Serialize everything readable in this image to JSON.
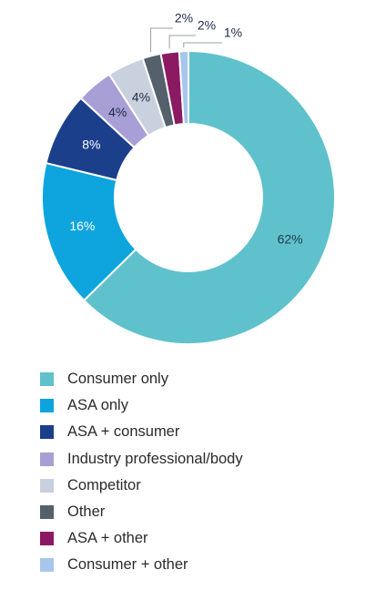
{
  "chart_data": {
    "type": "pie",
    "donut": true,
    "start_angle_deg": 0,
    "title": "",
    "legend_position": "bottom-left",
    "slices": [
      {
        "name": "Consumer only",
        "value": 62,
        "label": "62%",
        "color": "#5fc1cc",
        "label_color": "#1f3a4a"
      },
      {
        "name": "ASA only",
        "value": 16,
        "label": "16%",
        "color": "#0ea5de",
        "label_color": "#ffffff"
      },
      {
        "name": "ASA + consumer",
        "value": 8,
        "label": "8%",
        "color": "#1b3f8b",
        "label_color": "#ffffff"
      },
      {
        "name": "Industry professional/body",
        "value": 4,
        "label": "4%",
        "color": "#a89fd6",
        "label_color": "#1f2a44"
      },
      {
        "name": "Competitor",
        "value": 4,
        "label": "4%",
        "color": "#c9d1df",
        "label_color": "#1f2a44"
      },
      {
        "name": "Other",
        "value": 2,
        "label": "2%",
        "color": "#54606b",
        "label_color": "#1f2a44"
      },
      {
        "name": "ASA + other",
        "value": 2,
        "label": "2%",
        "color": "#8b1a63",
        "label_color": "#1f2a44"
      },
      {
        "name": "Consumer + other",
        "value": 1,
        "label": "1%",
        "color": "#a7c6ec",
        "label_color": "#1f2a44"
      }
    ]
  }
}
